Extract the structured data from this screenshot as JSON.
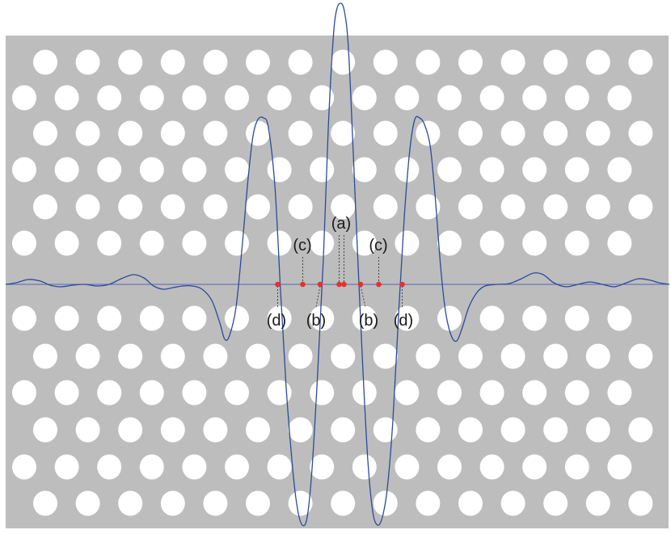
{
  "colors": {
    "crystal": "#bdbdbd",
    "holes": "#ffffff",
    "field": "#2a4b9b",
    "axis": "#5565b3",
    "points": "#e8302c",
    "guides": "#444444",
    "text": "#1a1a1a"
  },
  "lattice": {
    "type": "triangular-hole-array",
    "rows": 12,
    "holes_per_row": 15
  },
  "labels": {
    "a": "(a)",
    "b_left": "(b)",
    "b_right": "(b)",
    "c_left": "(c)",
    "c_right": "(c)",
    "d_left": "(d)",
    "d_right": "(d)"
  }
}
